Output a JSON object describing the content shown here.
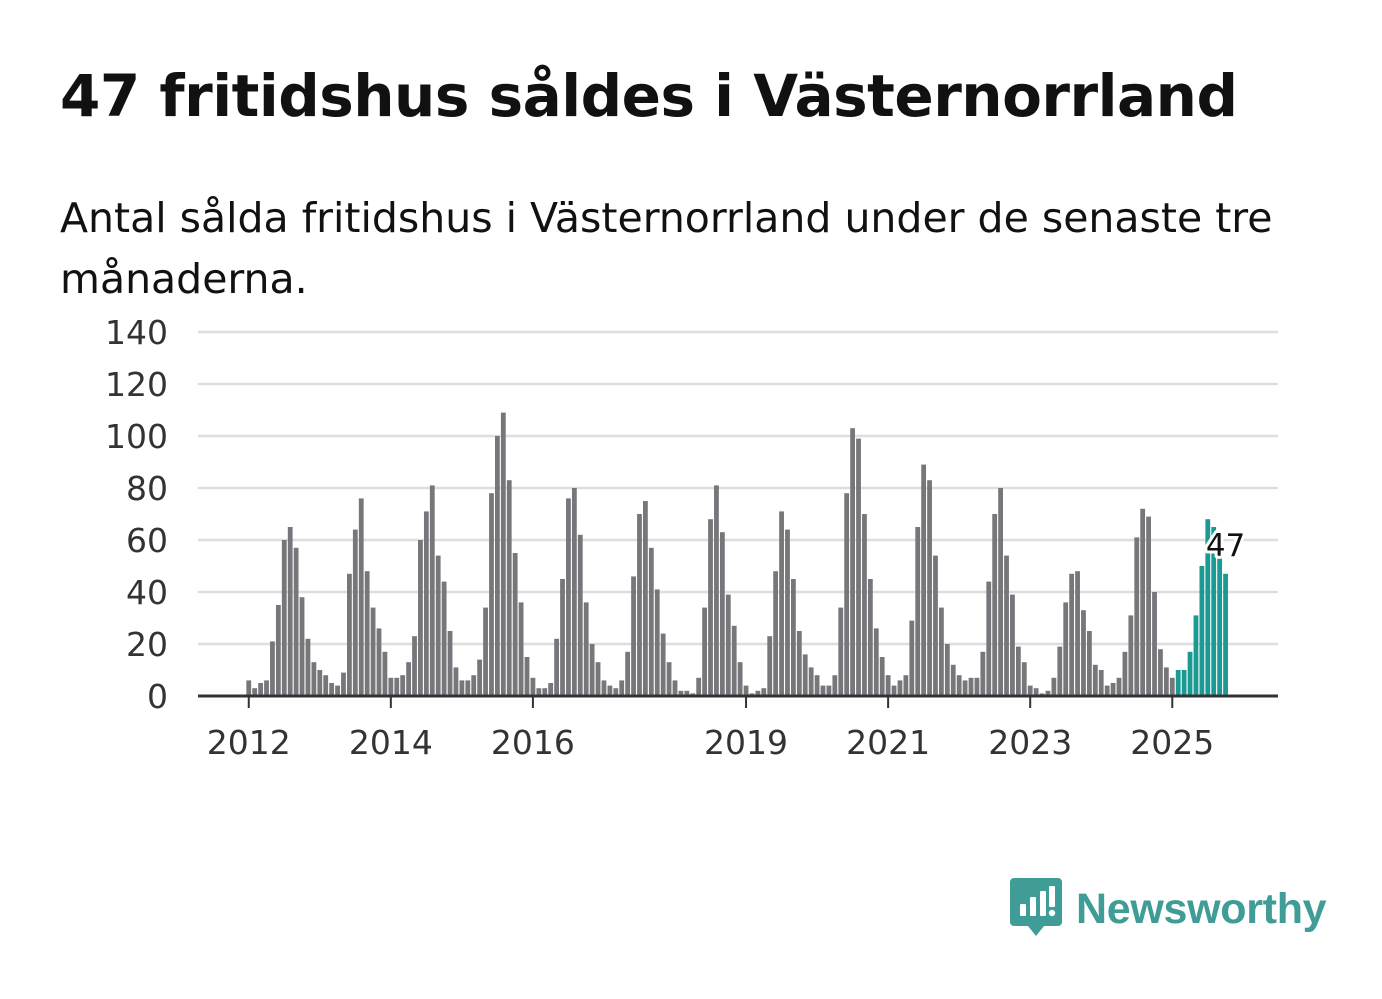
{
  "title": "47 fritidshus såldes i Västernorrland",
  "subtitle": "Antal sålda fritidshus i Västernorrland under de senaste tre månaderna.",
  "brand": {
    "name": "Newsworthy",
    "color": "#3f9c96",
    "icon": "newsworthy-logo-icon"
  },
  "chart_data": {
    "type": "bar",
    "colors": {
      "bar": "#77767b",
      "highlight": "#1b9a94",
      "grid": "#dedede",
      "axis": "#333333"
    },
    "ylim": [
      0,
      140
    ],
    "yticks": [
      0,
      20,
      40,
      60,
      80,
      100,
      120,
      140
    ],
    "xticks": [
      {
        "label": "2012",
        "index": 8
      },
      {
        "label": "2014",
        "index": 32
      },
      {
        "label": "2016",
        "index": 56
      },
      {
        "label": "2019",
        "index": 92
      },
      {
        "label": "2021",
        "index": 116
      },
      {
        "label": "2023",
        "index": 140
      },
      {
        "label": "2025",
        "index": 164
      }
    ],
    "callout": {
      "label": "47",
      "value": 47
    },
    "values": [
      0,
      0,
      0,
      0,
      0,
      0,
      0,
      0,
      6,
      3,
      5,
      6,
      21,
      35,
      60,
      65,
      57,
      38,
      22,
      13,
      10,
      8,
      5,
      4,
      9,
      47,
      64,
      76,
      48,
      34,
      26,
      17,
      7,
      7,
      8,
      13,
      23,
      60,
      71,
      81,
      54,
      44,
      25,
      11,
      6,
      6,
      8,
      14,
      34,
      78,
      100,
      109,
      83,
      55,
      36,
      15,
      7,
      3,
      3,
      5,
      22,
      45,
      76,
      80,
      62,
      36,
      20,
      13,
      6,
      4,
      3,
      6,
      17,
      46,
      70,
      75,
      57,
      41,
      24,
      13,
      6,
      2,
      2,
      1,
      7,
      34,
      68,
      81,
      63,
      39,
      27,
      13,
      4,
      1,
      2,
      3,
      23,
      48,
      71,
      64,
      45,
      25,
      16,
      11,
      8,
      4,
      4,
      8,
      34,
      78,
      103,
      99,
      70,
      45,
      26,
      15,
      8,
      4,
      6,
      8,
      29,
      65,
      89,
      83,
      54,
      34,
      20,
      12,
      8,
      6,
      7,
      7,
      17,
      44,
      70,
      80,
      54,
      39,
      19,
      13,
      4,
      3,
      1,
      2,
      7,
      19,
      36,
      47,
      48,
      33,
      25,
      12,
      10,
      4,
      5,
      7,
      17,
      31,
      61,
      72,
      69,
      40,
      18,
      11,
      7,
      10,
      10,
      17,
      31,
      50,
      68,
      65,
      59,
      47
    ],
    "highlight_from_index": 165
  }
}
